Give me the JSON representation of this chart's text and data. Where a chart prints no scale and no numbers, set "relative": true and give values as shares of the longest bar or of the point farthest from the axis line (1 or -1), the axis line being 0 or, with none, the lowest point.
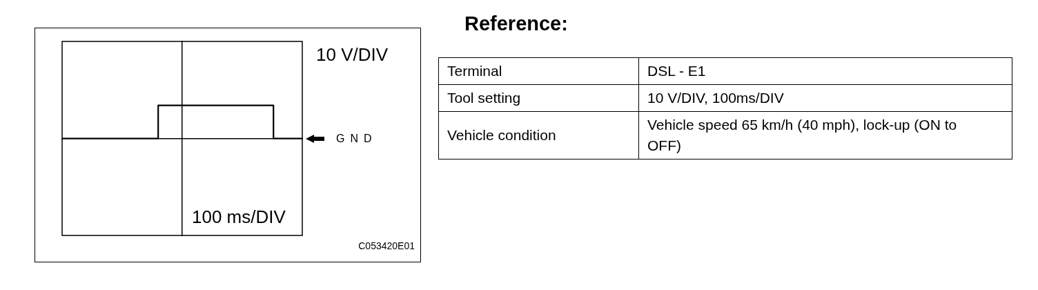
{
  "chart_data": [
    {
      "type": "step",
      "xlabel": "100 ms/DIV",
      "ylabel": "10 V/DIV",
      "relative": true,
      "categories": [
        null,
        null,
        null,
        null,
        null,
        null,
        null,
        null,
        null,
        null,
        null,
        null,
        null,
        null,
        null,
        null,
        null,
        null,
        null,
        null,
        null,
        null,
        null,
        null,
        null,
        null,
        null,
        null,
        null,
        null,
        null,
        null,
        null,
        null,
        null,
        null,
        null,
        null,
        null,
        null,
        null,
        null,
        null,
        null,
        null,
        null,
        null,
        null,
        null,
        null,
        null
      ],
      "values": [
        0,
        0,
        0,
        0,
        0,
        0,
        0,
        0,
        0,
        0,
        0,
        0,
        0,
        0,
        0,
        0,
        0,
        0,
        0,
        0,
        1,
        1,
        1,
        1,
        1,
        1,
        1,
        1,
        1,
        1,
        1,
        1,
        1,
        1,
        1,
        1,
        1,
        1,
        1,
        1,
        1,
        1,
        1,
        1,
        0,
        0,
        0,
        0,
        0,
        0,
        0
      ],
      "color": "#000000",
      "annotations": [
        "GND",
        "C053420E01"
      ]
    },
    {
      "type": "other",
      "title": "Reference:",
      "annotations": [
        "Terminal",
        "DSL - E1",
        "Tool setting",
        "10 V/DIV, 100ms/DIV",
        "Vehicle condition",
        "Vehicle speed 65 km/h (40 mph), lock-up (ON to OFF)"
      ]
    }
  ]
}
